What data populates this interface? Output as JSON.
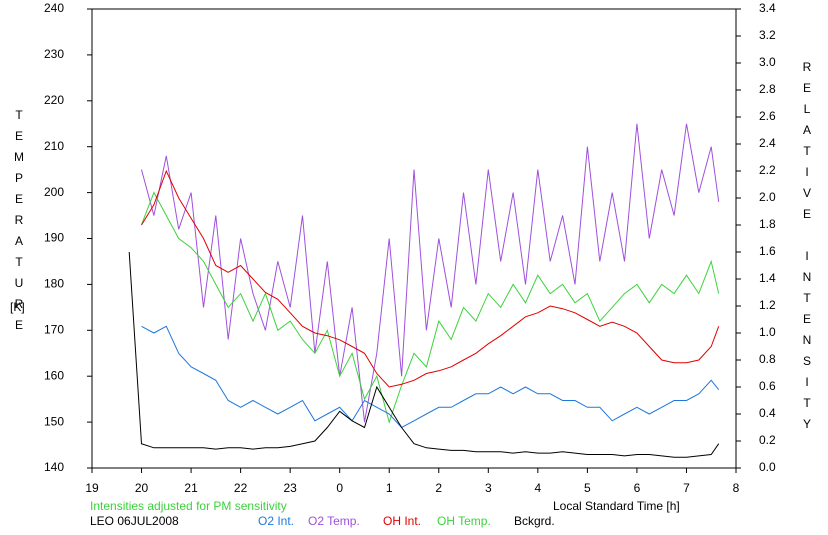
{
  "chart_data": {
    "type": "line",
    "y_label": "TEMPERATURE",
    "y_unit": "[K]",
    "y2_label": "RELATIVE INTENSITY",
    "x_label": "Local Standard Time [h]",
    "annotation": "Intensities adjusted for PM sensitivity",
    "footer": "LEO 06JUL2008",
    "xlim": [
      19,
      32
    ],
    "xticks": [
      19,
      20,
      21,
      22,
      23,
      {
        "value": 24,
        "label": "0"
      },
      {
        "value": 25,
        "label": "1"
      },
      {
        "value": 26,
        "label": "2"
      },
      {
        "value": 27,
        "label": "3"
      },
      {
        "value": 28,
        "label": "4"
      },
      {
        "value": 29,
        "label": "5"
      },
      {
        "value": 30,
        "label": "6"
      },
      {
        "value": 31,
        "label": "7"
      },
      {
        "value": 32,
        "label": "8"
      }
    ],
    "ylim": [
      140,
      240
    ],
    "yticks": [
      140,
      150,
      160,
      170,
      180,
      190,
      200,
      210,
      220,
      230,
      240
    ],
    "y2lim": [
      0,
      3.4
    ],
    "y2ticks": [
      {
        "value": 0,
        "label": "0.0"
      },
      0.2,
      0.4,
      0.6,
      0.8,
      {
        "value": 1,
        "label": "1.0"
      },
      1.2,
      1.4,
      1.6,
      1.8,
      {
        "value": 2,
        "label": "2.0"
      },
      2.2,
      2.4,
      2.6,
      2.8,
      {
        "value": 3,
        "label": "3.0"
      },
      3.2,
      3.4
    ],
    "x": [
      19.75,
      20,
      20.25,
      20.5,
      20.75,
      21,
      21.25,
      21.5,
      21.75,
      22,
      22.25,
      22.5,
      22.75,
      23,
      23.25,
      23.5,
      23.75,
      24,
      24.25,
      24.5,
      24.75,
      25,
      25.25,
      25.5,
      25.75,
      26,
      26.25,
      26.5,
      26.75,
      27,
      27.25,
      27.5,
      27.75,
      28,
      28.25,
      28.5,
      28.75,
      29,
      29.25,
      29.5,
      29.75,
      30,
      30.25,
      30.5,
      30.75,
      31,
      31.25,
      31.5,
      31.65
    ],
    "series": [
      {
        "name": "O2 Int.",
        "color": "#1e78dc",
        "axis": "y2",
        "values": [
          null,
          1.05,
          1.0,
          1.05,
          0.85,
          0.75,
          0.7,
          0.65,
          0.5,
          0.45,
          0.5,
          0.45,
          0.4,
          0.45,
          0.5,
          0.35,
          0.4,
          0.45,
          0.35,
          0.5,
          0.45,
          0.4,
          0.3,
          0.35,
          0.4,
          0.45,
          0.45,
          0.5,
          0.55,
          0.55,
          0.6,
          0.55,
          0.6,
          0.55,
          0.55,
          0.5,
          0.5,
          0.45,
          0.45,
          0.35,
          0.4,
          0.45,
          0.4,
          0.45,
          0.5,
          0.5,
          0.55,
          0.65,
          0.58
        ]
      },
      {
        "name": "O2 Temp.",
        "color": "#a050dc",
        "values": [
          null,
          205,
          195,
          208,
          192,
          200,
          175,
          195,
          168,
          190,
          178,
          170,
          185,
          175,
          195,
          165,
          185,
          160,
          175,
          150,
          165,
          190,
          160,
          205,
          170,
          190,
          175,
          200,
          180,
          205,
          185,
          200,
          180,
          205,
          185,
          195,
          180,
          210,
          185,
          200,
          185,
          215,
          190,
          205,
          195,
          215,
          200,
          210,
          198
        ]
      },
      {
        "name": "OH Int.",
        "color": "#e00000",
        "axis": "y2",
        "values": [
          null,
          1.8,
          1.95,
          2.2,
          2.0,
          1.85,
          1.7,
          1.5,
          1.45,
          1.5,
          1.4,
          1.3,
          1.25,
          1.15,
          1.05,
          1.0,
          0.98,
          0.95,
          0.9,
          0.85,
          0.7,
          0.6,
          0.62,
          0.65,
          0.7,
          0.72,
          0.75,
          0.8,
          0.85,
          0.92,
          0.98,
          1.05,
          1.12,
          1.15,
          1.2,
          1.18,
          1.15,
          1.1,
          1.05,
          1.08,
          1.05,
          1.0,
          0.9,
          0.8,
          0.78,
          0.78,
          0.8,
          0.9,
          1.05
        ]
      },
      {
        "name": "OH Temp.",
        "color": "#3cd23c",
        "values": [
          null,
          193,
          200,
          195,
          190,
          188,
          185,
          180,
          175,
          178,
          172,
          178,
          170,
          172,
          168,
          165,
          170,
          160,
          165,
          155,
          160,
          150,
          158,
          165,
          162,
          172,
          168,
          175,
          172,
          178,
          175,
          180,
          176,
          182,
          178,
          180,
          176,
          178,
          172,
          175,
          178,
          180,
          176,
          180,
          178,
          182,
          178,
          185,
          178
        ]
      },
      {
        "name": "Bckgrd.",
        "color": "#000000",
        "axis": "y2",
        "values": [
          1.6,
          0.18,
          0.15,
          0.15,
          0.15,
          0.15,
          0.15,
          0.14,
          0.15,
          0.15,
          0.14,
          0.15,
          0.15,
          0.16,
          0.18,
          0.2,
          0.3,
          0.42,
          0.35,
          0.3,
          0.6,
          0.45,
          0.3,
          0.18,
          0.15,
          0.14,
          0.13,
          0.13,
          0.12,
          0.12,
          0.12,
          0.11,
          0.12,
          0.11,
          0.11,
          0.12,
          0.11,
          0.1,
          0.1,
          0.1,
          0.09,
          0.1,
          0.1,
          0.09,
          0.08,
          0.08,
          0.09,
          0.1,
          0.18
        ]
      }
    ]
  }
}
